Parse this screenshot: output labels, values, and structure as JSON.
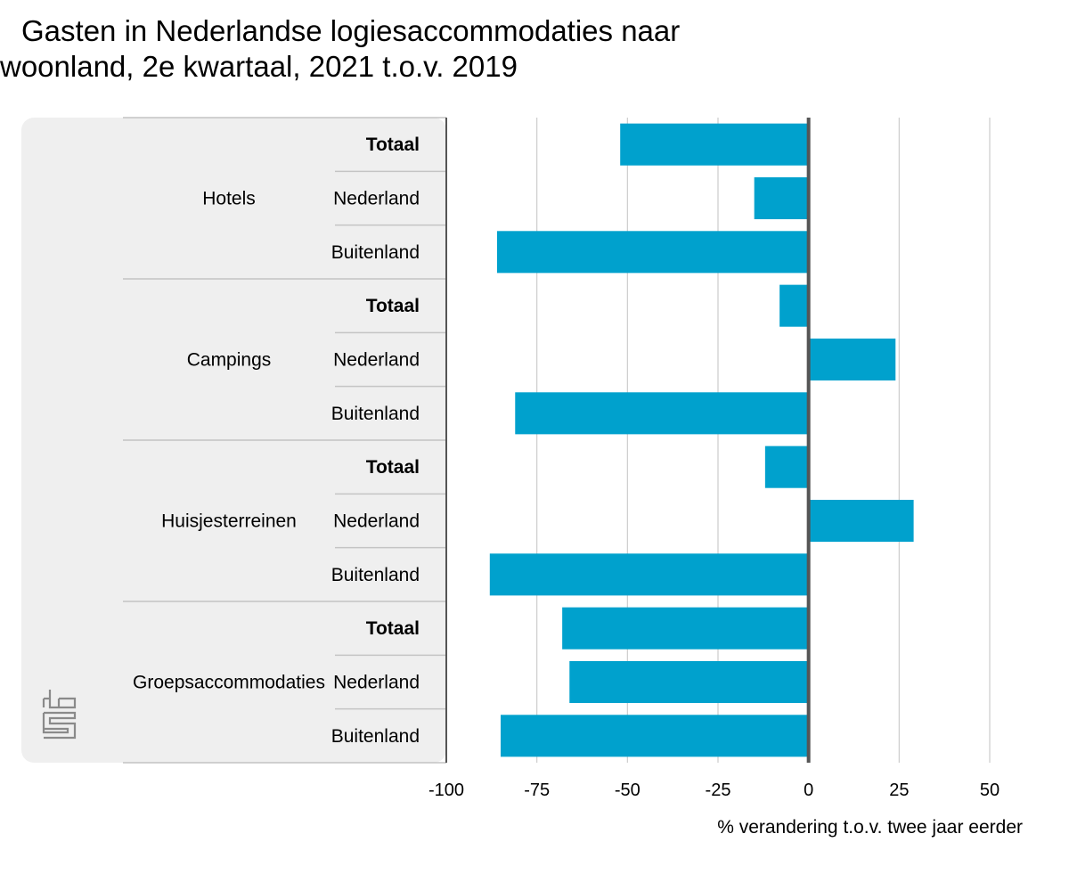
{
  "title_lines": [
    "Gasten in Nederlandse logiesaccommodaties naar",
    "woonland, 2e kwartaal, 2021 t.o.v. 2019"
  ],
  "chart_data": {
    "type": "bar",
    "orientation": "horizontal",
    "title": "Gasten in Nederlandse logiesaccommodaties naar woonland, 2e kwartaal, 2021 t.o.v. 2019",
    "xlabel": "% verandering t.o.v. twee jaar eerder",
    "ylabel": "",
    "xlim": [
      -100,
      50
    ],
    "xticks": [
      -100,
      -75,
      -50,
      -25,
      0,
      25,
      50
    ],
    "grid": true,
    "bar_color": "#00a1cd",
    "groups": [
      {
        "name": "Hotels",
        "rows": [
          {
            "label": "Totaal",
            "bold": true,
            "value": -52
          },
          {
            "label": "Nederland",
            "bold": false,
            "value": -15
          },
          {
            "label": "Buitenland",
            "bold": false,
            "value": -86
          }
        ]
      },
      {
        "name": "Campings",
        "rows": [
          {
            "label": "Totaal",
            "bold": true,
            "value": -8
          },
          {
            "label": "Nederland",
            "bold": false,
            "value": 24
          },
          {
            "label": "Buitenland",
            "bold": false,
            "value": -81
          }
        ]
      },
      {
        "name": "Huisjesterreinen",
        "rows": [
          {
            "label": "Totaal",
            "bold": true,
            "value": -12
          },
          {
            "label": "Nederland",
            "bold": false,
            "value": 29
          },
          {
            "label": "Buitenland",
            "bold": false,
            "value": -88
          }
        ]
      },
      {
        "name": "Groepsaccommodaties",
        "rows": [
          {
            "label": "Totaal",
            "bold": true,
            "value": -68
          },
          {
            "label": "Nederland",
            "bold": false,
            "value": -66
          },
          {
            "label": "Buitenland",
            "bold": false,
            "value": -85
          }
        ]
      }
    ]
  },
  "colors": {
    "bar": "#00a1cd",
    "panel": "#efefef",
    "grid": "#cccccc",
    "zero_line": "#555555",
    "separator": "#c4c4c4"
  },
  "logo": {
    "icon": "cbs-logo-icon"
  }
}
